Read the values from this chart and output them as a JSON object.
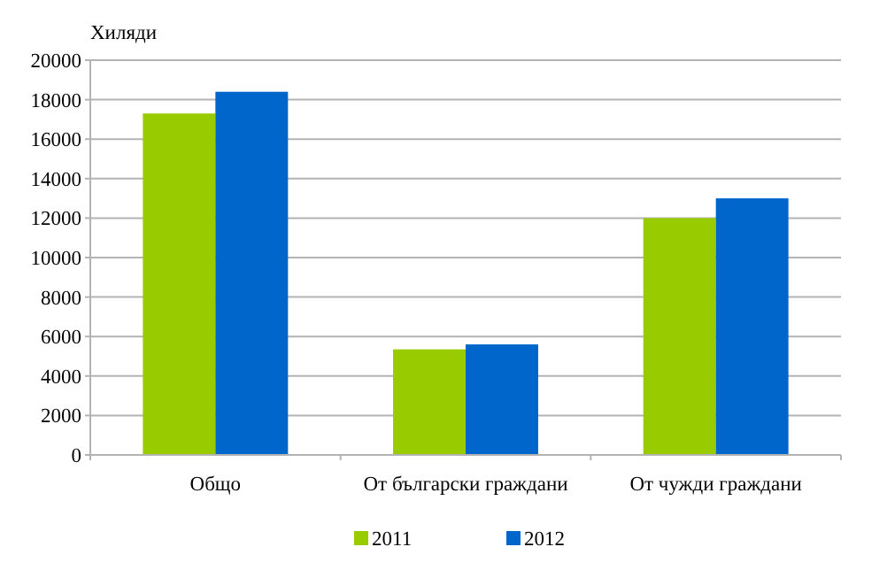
{
  "chart_data": {
    "type": "bar",
    "ylabel": "Хиляди",
    "categories": [
      "Общо",
      "От български граждани",
      "От чужди граждани"
    ],
    "series": [
      {
        "name": "2011",
        "color": "#99cc00",
        "values": [
          17300,
          5350,
          12000
        ]
      },
      {
        "name": "2012",
        "color": "#0066cc",
        "values": [
          18400,
          5600,
          13000
        ]
      }
    ],
    "ylim": [
      0,
      20000
    ],
    "yticks": [
      0,
      2000,
      4000,
      6000,
      8000,
      10000,
      12000,
      14000,
      16000,
      18000,
      20000
    ],
    "grid": "y",
    "legend": "bottom"
  }
}
